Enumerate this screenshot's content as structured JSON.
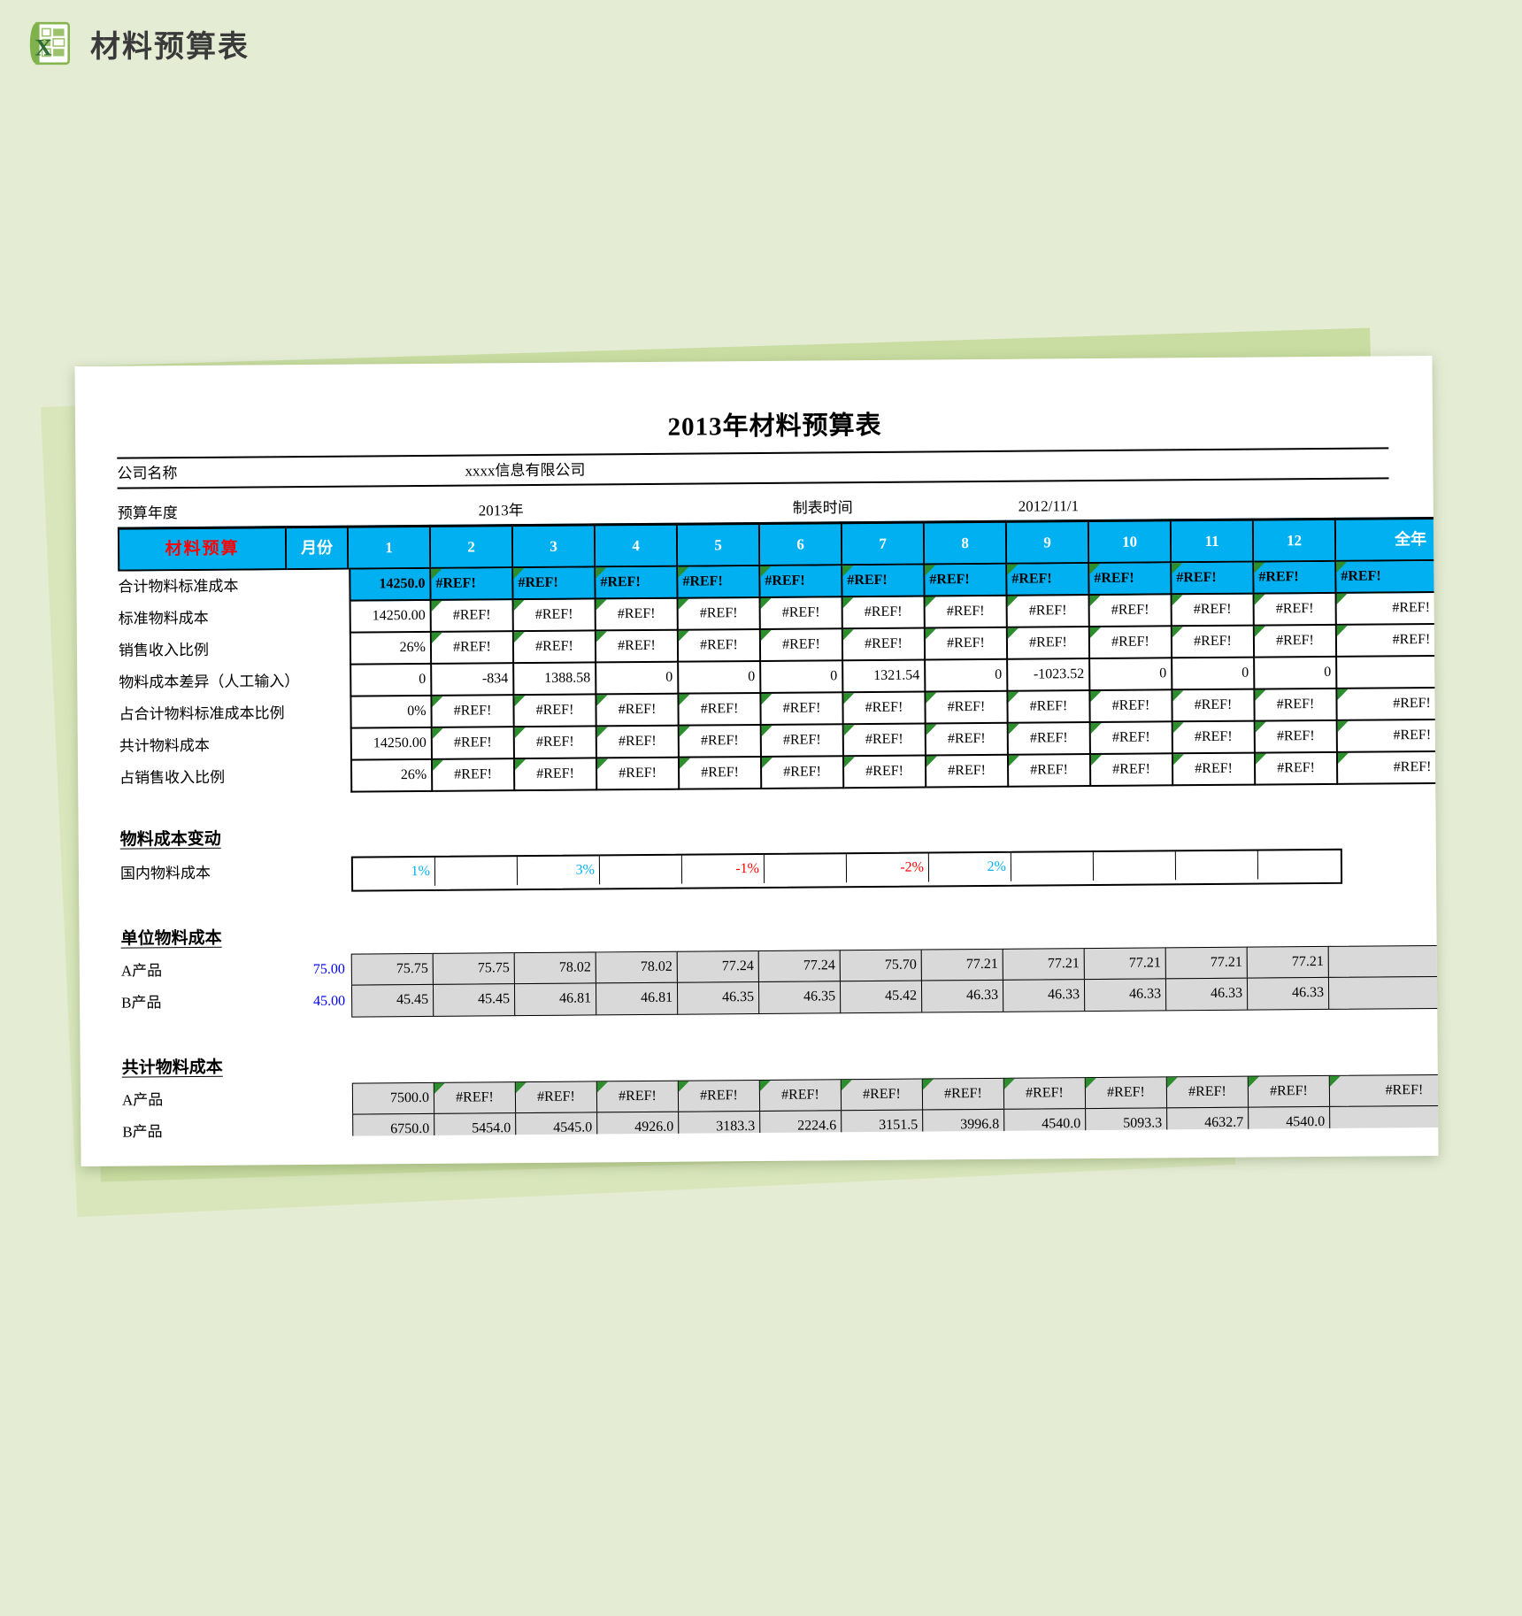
{
  "page": {
    "header": {
      "title": "材料预算表"
    }
  },
  "sheet": {
    "title": "2013年材料预算表",
    "info": {
      "company_label": "公司名称",
      "company_value": "xxxx信息有限公司",
      "year_label": "预算年度",
      "year_value": "2013年",
      "date_label": "制表时间",
      "date_value": "2012/11/1"
    },
    "budget_table": {
      "corner_label": "材料预算",
      "month_label": "月份",
      "months": [
        "1",
        "2",
        "3",
        "4",
        "5",
        "6",
        "7",
        "8",
        "9",
        "10",
        "11",
        "12"
      ],
      "annual_label": "全年",
      "rows": [
        {
          "label": "合计物料标准成本",
          "type": "total",
          "cells": [
            "14250.0",
            "#REF!",
            "#REF!",
            "#REF!",
            "#REF!",
            "#REF!",
            "#REF!",
            "#REF!",
            "#REF!",
            "#REF!",
            "#REF!",
            "#REF!"
          ],
          "annual": "#REF!"
        },
        {
          "label": "标准物料成本",
          "cells": [
            "14250.00",
            "#REF!",
            "#REF!",
            "#REF!",
            "#REF!",
            "#REF!",
            "#REF!",
            "#REF!",
            "#REF!",
            "#REF!",
            "#REF!",
            "#REF!"
          ],
          "annual": "#REF!"
        },
        {
          "label": "销售收入比例",
          "cells": [
            "26%",
            "#REF!",
            "#REF!",
            "#REF!",
            "#REF!",
            "#REF!",
            "#REF!",
            "#REF!",
            "#REF!",
            "#REF!",
            "#REF!",
            "#REF!"
          ],
          "annual": "#REF!"
        },
        {
          "label": "物料成本差异（人工输入）",
          "cells": [
            "0",
            "-834",
            "1388.58",
            "0",
            "0",
            "0",
            "1321.54",
            "0",
            "-1023.52",
            "0",
            "0",
            "0"
          ],
          "annual": ""
        },
        {
          "label": "占合计物料标准成本比例",
          "cells": [
            "0%",
            "#REF!",
            "#REF!",
            "#REF!",
            "#REF!",
            "#REF!",
            "#REF!",
            "#REF!",
            "#REF!",
            "#REF!",
            "#REF!",
            "#REF!"
          ],
          "annual": "#REF!"
        },
        {
          "label": "共计物料成本",
          "cells": [
            "14250.00",
            "#REF!",
            "#REF!",
            "#REF!",
            "#REF!",
            "#REF!",
            "#REF!",
            "#REF!",
            "#REF!",
            "#REF!",
            "#REF!",
            "#REF!"
          ],
          "annual": "#REF!"
        },
        {
          "label": "占销售收入比例",
          "cells": [
            "26%",
            "#REF!",
            "#REF!",
            "#REF!",
            "#REF!",
            "#REF!",
            "#REF!",
            "#REF!",
            "#REF!",
            "#REF!",
            "#REF!",
            "#REF!"
          ],
          "annual": "#REF!"
        }
      ]
    },
    "sections": [
      {
        "heading": "物料成本变动",
        "rows": [
          {
            "label": "国内物料成本",
            "lead": "",
            "bg": "white",
            "annual": null,
            "cells": [
              {
                "v": "1%",
                "c": "#00b0f0"
              },
              "",
              {
                "v": "3%",
                "c": "#00b0f0"
              },
              "",
              {
                "v": "-1%",
                "c": "#ff0000"
              },
              "",
              {
                "v": "-2%",
                "c": "#ff0000"
              },
              {
                "v": "2%",
                "c": "#00b0f0"
              },
              "",
              "",
              "",
              ""
            ]
          }
        ]
      },
      {
        "heading": "单位物料成本",
        "rows": [
          {
            "label": "A产品",
            "lead": "75.00",
            "bg": "gray",
            "annual": "",
            "cells": [
              "75.75",
              "75.75",
              "78.02",
              "78.02",
              "77.24",
              "77.24",
              "75.70",
              "77.21",
              "77.21",
              "77.21",
              "77.21",
              "77.21"
            ]
          },
          {
            "label": "B产品",
            "lead": "45.00",
            "bg": "gray",
            "annual": "",
            "cells": [
              "45.45",
              "45.45",
              "46.81",
              "46.81",
              "46.35",
              "46.35",
              "45.42",
              "46.33",
              "46.33",
              "46.33",
              "46.33",
              "46.33"
            ]
          }
        ]
      },
      {
        "heading": "共计物料成本",
        "rows": [
          {
            "label": "A产品",
            "lead": "",
            "bg": "gray",
            "annual": "#REF!",
            "cells": [
              "7500.0",
              "#REF!",
              "#REF!",
              "#REF!",
              "#REF!",
              "#REF!",
              "#REF!",
              "#REF!",
              "#REF!",
              "#REF!",
              "#REF!",
              "#REF!"
            ]
          },
          {
            "label": "B产品",
            "lead": "",
            "bg": "gray",
            "annual": "",
            "cells": [
              "6750.0",
              "5454.0",
              "4545.0",
              "4926.0",
              "3183.3",
              "2224.6",
              "3151.5",
              "3996.8",
              "4540.0",
              "5093.3",
              "4632.7",
              "4540.0"
            ]
          }
        ]
      }
    ],
    "colors": {
      "header_blue": "#00b0f0",
      "error_marker_green": "#2d8e2d",
      "lead_value_blue": "#0000ff",
      "negative_red": "#ff0000",
      "percent_cyan": "#00b0f0",
      "gray_cell": "#d9d9d9",
      "corner_label_red": "#ff0000"
    }
  }
}
